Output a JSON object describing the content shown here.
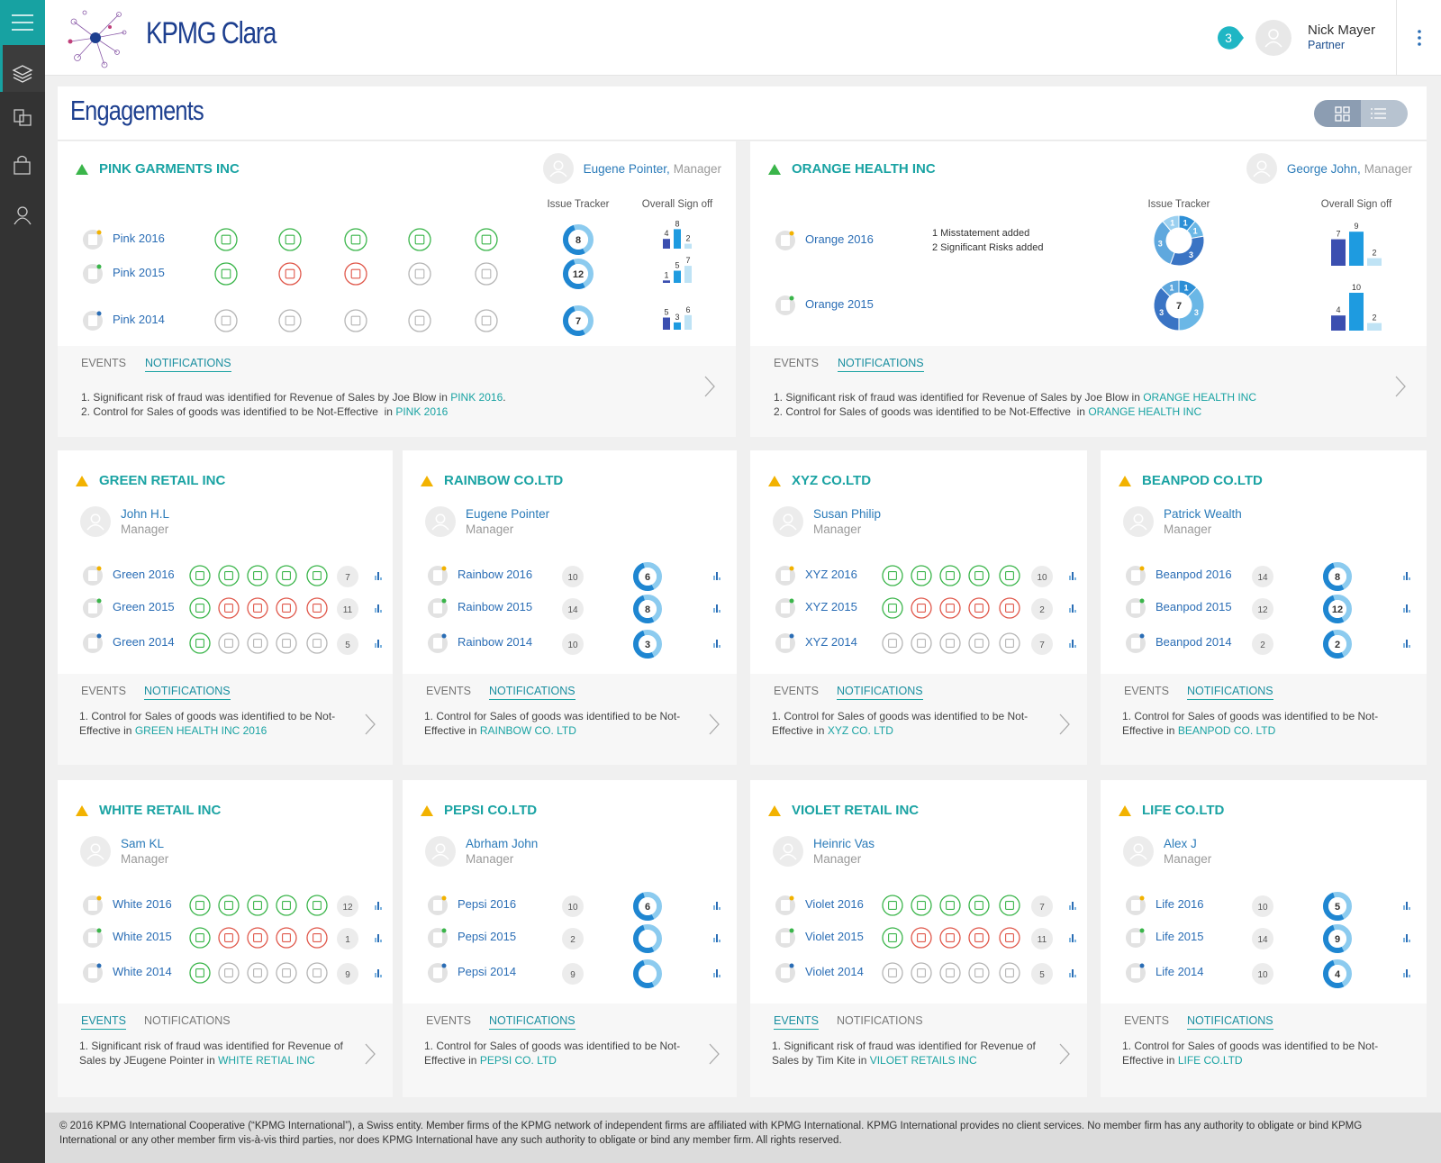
{
  "header": {
    "app_name": "KPMG Clara",
    "notification_count": 3,
    "user": {
      "name": "Nick Mayer",
      "role": "Partner"
    }
  },
  "page_title": "Engagements",
  "column_labels": [
    "Issue Tracker",
    "Overall Sign off"
  ],
  "tabs": [
    "EVENTS",
    "NOTIFICATIONS"
  ],
  "engagements": [
    {
      "name": "PINK GARMENTS INC",
      "flag_color": "#3ab54a",
      "manager": {
        "name": "Eugene Pointer,",
        "role": "Manager"
      },
      "years": [
        {
          "label": "Pink 2016",
          "stages": [
            "#3ab54a",
            "#3ab54a",
            "#3ab54a",
            "#3ab54a",
            "#3ab54a"
          ],
          "issues": 8,
          "signoff": [
            4,
            8,
            2
          ]
        },
        {
          "label": "Pink 2015",
          "stages": [
            "#3ab54a",
            "#e0574a",
            "#e0574a",
            "#b5b5b5",
            "#b5b5b5"
          ],
          "issues": 12,
          "signoff": [
            1,
            5,
            7
          ]
        },
        {
          "label": "Pink 2014",
          "stages": [
            "#b5b5b5",
            "#b5b5b5",
            "#b5b5b5",
            "#b5b5b5",
            "#b5b5b5"
          ],
          "issues": 7,
          "signoff": [
            5,
            3,
            6
          ]
        }
      ],
      "active_tab": 1,
      "notifications": [
        {
          "text": "1. Significant risk of fraud was identified for Revenue of Sales by Joe Blow in ",
          "link": "PINK 2016",
          "end": "."
        },
        {
          "text": "2. Control for Sales of goods was identified to be Not-Effective  in ",
          "link": "PINK 2016"
        }
      ]
    },
    {
      "name": "ORANGE HEALTH INC",
      "flag_color": "#3ab54a",
      "manager": {
        "name": "George John,",
        "role": "Manager"
      },
      "years": [
        {
          "label": "Orange 2016",
          "issue_segments": [
            1,
            1,
            3,
            3,
            1
          ],
          "signoff": [
            7,
            9,
            2
          ],
          "notes": [
            "1 Misstatement added",
            "2 Significant Risks added"
          ]
        },
        {
          "label": "Orange 2015",
          "issues": 7,
          "issue_segments": [
            1,
            3,
            3,
            1
          ],
          "signoff": [
            4,
            10,
            2
          ]
        }
      ],
      "active_tab": 1,
      "notifications": [
        {
          "text": "1. Significant risk of fraud was identified for Revenue of Sales by Joe Blow in ",
          "link": "ORANGE HEALTH INC"
        },
        {
          "text": "2. Control for Sales of goods was identified to be Not-Effective  in ",
          "link": "ORANGE HEALTH INC"
        }
      ]
    },
    {
      "name": "GREEN RETAIL INC",
      "flag_color": "#f2b200",
      "manager": {
        "name": "John H.L",
        "role": "Manager"
      },
      "years": [
        {
          "label": "Green 2016",
          "stages": [
            "#3ab54a",
            "#3ab54a",
            "#3ab54a",
            "#3ab54a",
            "#3ab54a"
          ],
          "count": 7
        },
        {
          "label": "Green 2015",
          "stages": [
            "#3ab54a",
            "#e0574a",
            "#e0574a",
            "#e0574a",
            "#e0574a"
          ],
          "count": 11
        },
        {
          "label": "Green 2014",
          "stages": [
            "#3ab54a",
            "#b5b5b5",
            "#b5b5b5",
            "#b5b5b5",
            "#b5b5b5"
          ],
          "count": 5
        }
      ],
      "active_tab": 1,
      "notifications": [
        {
          "text": "1. Control for Sales of goods was identified to be Not-Effective in ",
          "link": "GREEN HEALTH INC 2016"
        }
      ]
    },
    {
      "name": "RAINBOW CO.LTD",
      "flag_color": "#f2b200",
      "manager": {
        "name": "Eugene Pointer",
        "role": "Manager"
      },
      "years": [
        {
          "label": "Rainbow 2016",
          "count": 10,
          "issues": 6
        },
        {
          "label": "Rainbow 2015",
          "count": 14,
          "issues": 8
        },
        {
          "label": "Rainbow 2014",
          "count": 10,
          "issues": 3
        }
      ],
      "active_tab": 1,
      "notifications": [
        {
          "text": "1. Control for Sales of goods was identified to be Not-Effective in ",
          "link": "RAINBOW CO. LTD"
        }
      ]
    },
    {
      "name": "XYZ CO.LTD",
      "flag_color": "#f2b200",
      "manager": {
        "name": "Susan Philip",
        "role": "Manager"
      },
      "years": [
        {
          "label": "XYZ 2016",
          "stages": [
            "#3ab54a",
            "#3ab54a",
            "#3ab54a",
            "#3ab54a",
            "#3ab54a"
          ],
          "count": 10
        },
        {
          "label": "XYZ 2015",
          "stages": [
            "#3ab54a",
            "#e0574a",
            "#e0574a",
            "#e0574a",
            "#e0574a"
          ],
          "count": 2
        },
        {
          "label": "XYZ 2014",
          "stages": [
            "#b5b5b5",
            "#b5b5b5",
            "#b5b5b5",
            "#b5b5b5",
            "#b5b5b5"
          ],
          "count": 7
        }
      ],
      "active_tab": 1,
      "notifications": [
        {
          "text": "1. Control for Sales of goods was identified to be Not-Effective in ",
          "link": "XYZ CO. LTD"
        }
      ]
    },
    {
      "name": "BEANPOD CO.LTD",
      "flag_color": "#f2b200",
      "manager": {
        "name": "Patrick Wealth",
        "role": "Manager"
      },
      "years": [
        {
          "label": "Beanpod 2016",
          "count": 14,
          "issues": 8
        },
        {
          "label": "Beanpod 2015",
          "count": 12,
          "issues": 12
        },
        {
          "label": "Beanpod 2014",
          "count": 2,
          "issues": 2
        }
      ],
      "active_tab": 1,
      "notifications": [
        {
          "text": "1. Control for Sales of goods was identified to be Not-Effective in ",
          "link": "BEANPOD CO. LTD"
        }
      ]
    },
    {
      "name": "WHITE RETAIL INC",
      "flag_color": "#f2b200",
      "manager": {
        "name": "Sam KL",
        "role": "Manager"
      },
      "years": [
        {
          "label": "White 2016",
          "stages": [
            "#3ab54a",
            "#3ab54a",
            "#3ab54a",
            "#3ab54a",
            "#3ab54a"
          ],
          "count": 12
        },
        {
          "label": "White 2015",
          "stages": [
            "#3ab54a",
            "#e0574a",
            "#e0574a",
            "#e0574a",
            "#e0574a"
          ],
          "count": 1
        },
        {
          "label": "White 2014",
          "stages": [
            "#3ab54a",
            "#b5b5b5",
            "#b5b5b5",
            "#b5b5b5",
            "#b5b5b5"
          ],
          "count": 9
        }
      ],
      "active_tab": 0,
      "notifications": [
        {
          "text": "1. Significant risk of fraud was identified for Revenue of Sales by JEugene Pointer in ",
          "link": "WHITE RETIAL INC"
        }
      ]
    },
    {
      "name": "PEPSI CO.LTD",
      "flag_color": "#f2b200",
      "manager": {
        "name": "Abrham John",
        "role": "Manager"
      },
      "years": [
        {
          "label": "Pepsi 2016",
          "count": 10,
          "issues": 6
        },
        {
          "label": "Pepsi 2015",
          "count": 2,
          "issues": null
        },
        {
          "label": "Pepsi 2014",
          "count": 9,
          "issues": null
        }
      ],
      "active_tab": 1,
      "notifications": [
        {
          "text": "1. Control for Sales of goods was identified to be Not-Effective in ",
          "link": "PEPSI CO. LTD"
        }
      ]
    },
    {
      "name": "VIOLET RETAIL INC",
      "flag_color": "#f2b200",
      "manager": {
        "name": "Heinric Vas",
        "role": "Manager"
      },
      "years": [
        {
          "label": "Violet 2016",
          "stages": [
            "#3ab54a",
            "#3ab54a",
            "#3ab54a",
            "#3ab54a",
            "#3ab54a"
          ],
          "count": 7
        },
        {
          "label": "Violet 2015",
          "stages": [
            "#3ab54a",
            "#e0574a",
            "#e0574a",
            "#e0574a",
            "#e0574a"
          ],
          "count": 11
        },
        {
          "label": "Violet 2014",
          "stages": [
            "#b5b5b5",
            "#b5b5b5",
            "#b5b5b5",
            "#b5b5b5",
            "#b5b5b5"
          ],
          "count": 5
        }
      ],
      "active_tab": 0,
      "notifications": [
        {
          "text": "1. Significant risk of fraud was identified for Revenue of Sales by Tim Kite in ",
          "link": "VILOET RETAILS INC"
        }
      ]
    },
    {
      "name": "LIFE CO.LTD",
      "flag_color": "#f2b200",
      "manager": {
        "name": "Alex J",
        "role": "Manager"
      },
      "years": [
        {
          "label": "Life 2016",
          "count": 10,
          "issues": 5
        },
        {
          "label": "Life 2015",
          "count": 14,
          "issues": 9
        },
        {
          "label": "Life 2014",
          "count": 10,
          "issues": 4
        }
      ],
      "active_tab": 1,
      "notifications": [
        {
          "text": "1. Control for Sales of goods was identified to be Not-Effective in ",
          "link": "LIFE CO.LTD"
        }
      ]
    }
  ],
  "footer": "© 2016 KPMG International Cooperative (“KPMG International”), a Swiss entity. Member firms of the KPMG network of independent firms are affiliated with KPMG International. KPMG International provides no client services. No member firm has any authority to obligate or bind KPMG International or any other member firm vis-à-vis third parties, nor does KPMG International have any such authority to obligate or bind any member firm. All rights reserved."
}
